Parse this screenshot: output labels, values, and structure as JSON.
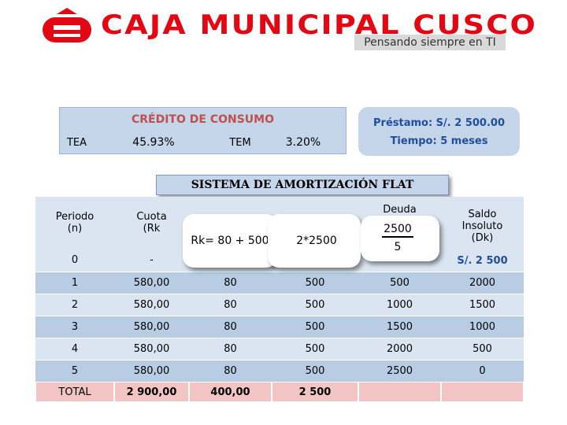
{
  "header": {
    "brand": "CAJA MUNICIPAL CUSCO",
    "tagline": "Pensando siempre en TI"
  },
  "credit": {
    "title": "CRÉDITO DE CONSUMO",
    "tea_label": "TEA",
    "tea": "45.93%",
    "tem_label": "TEM",
    "tem": "3.20%"
  },
  "loan": {
    "amount": "Préstamo: S/. 2 500.00",
    "term": "Tiempo: 5 meses"
  },
  "table": {
    "title": "SISTEMA DE AMORTIZACIÓN FLAT",
    "headers": {
      "period": [
        "Periodo",
        "(n)"
      ],
      "quota": [
        "Cuota",
        "(Rk"
      ],
      "debt": "Deuda",
      "balance": [
        "Saldo",
        "Insoluto",
        "(Dk)"
      ]
    },
    "first_row": {
      "period": "0",
      "quota": "-",
      "balance": "S/. 2 500"
    },
    "rows": [
      [
        "1",
        "580,00",
        "80",
        "500",
        "500",
        "2000"
      ],
      [
        "2",
        "580,00",
        "80",
        "500",
        "1000",
        "1500"
      ],
      [
        "3",
        "580,00",
        "80",
        "500",
        "1500",
        "1000"
      ],
      [
        "4",
        "580,00",
        "80",
        "500",
        "2000",
        "500"
      ],
      [
        "5",
        "580,00",
        "80",
        "500",
        "2500",
        "0"
      ]
    ],
    "total": [
      "TOTAL",
      "2 900,00",
      "400,00",
      "2 500"
    ]
  },
  "callouts": {
    "quota": "Rk= 80 + 500",
    "interest": "2*2500",
    "fraction": {
      "numerator": "2500",
      "denominator": "5"
    }
  }
}
